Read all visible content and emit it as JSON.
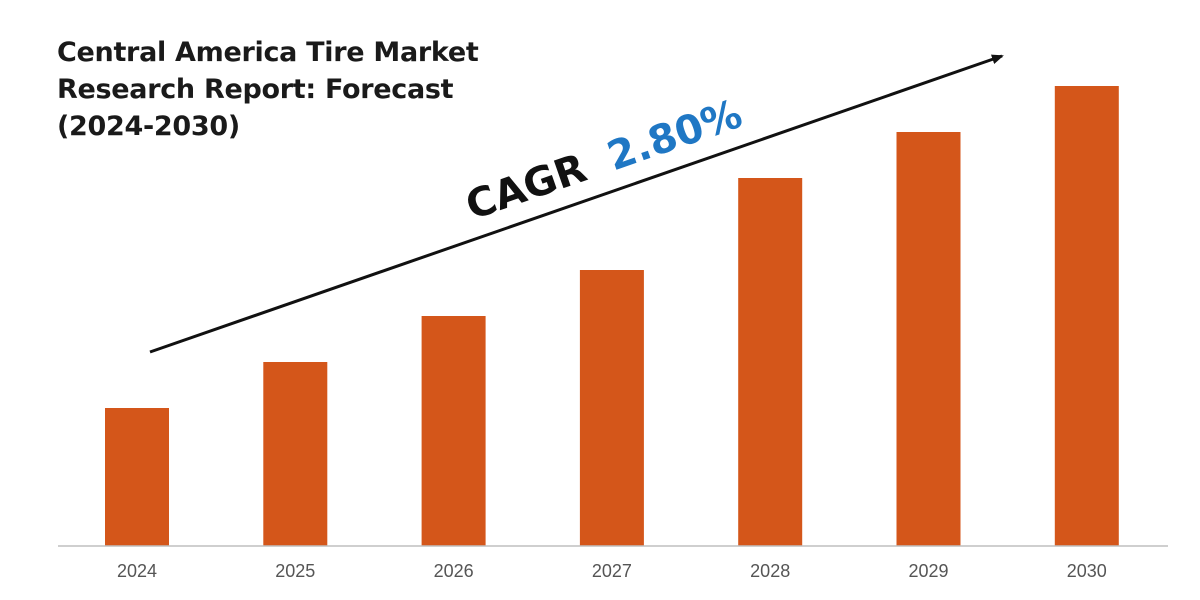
{
  "title_lines": [
    "Central America Tire Market",
    "Research Report: Forecast",
    "(2024-2030)"
  ],
  "annotation": {
    "prefix": "CAGR",
    "value": "2.80%",
    "prefix_color": "#111111",
    "value_color": "#1f77c4"
  },
  "colors": {
    "bar": "#d4561a",
    "axis": "#bfbfbf",
    "arrow": "#111111"
  },
  "chart_data": {
    "type": "bar",
    "categories": [
      "2024",
      "2025",
      "2026",
      "2027",
      "2028",
      "2029",
      "2030"
    ],
    "values": [
      30,
      40,
      50,
      60,
      80,
      90,
      100
    ],
    "ylim": [
      0,
      100
    ],
    "title": "Central America Tire Market Research Report: Forecast (2024-2030)",
    "xlabel": "",
    "ylabel": "",
    "grid": false,
    "legend": "none"
  }
}
